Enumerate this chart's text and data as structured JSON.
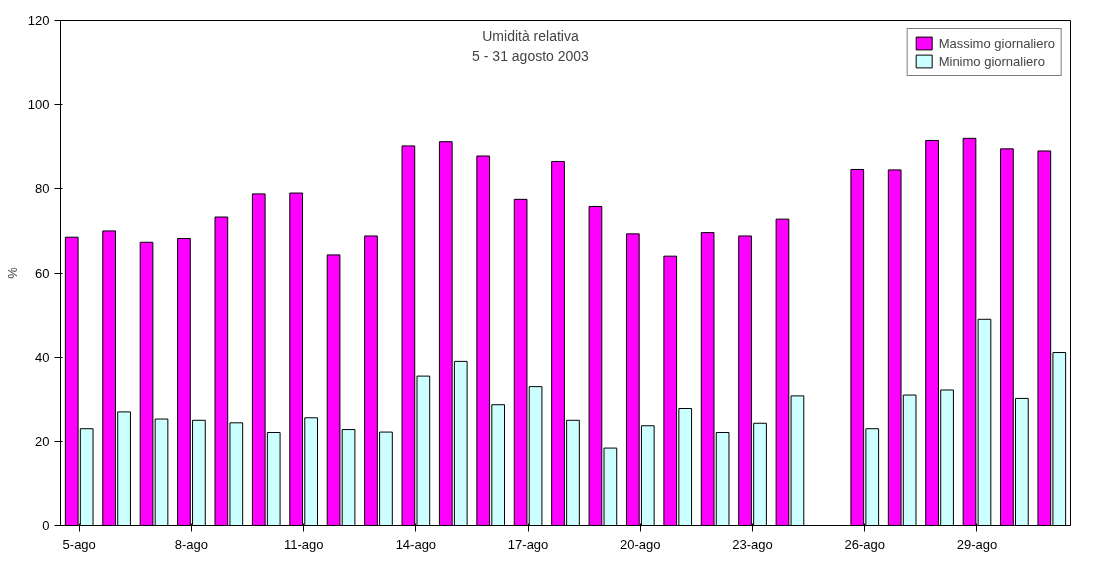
{
  "chart_data": {
    "type": "bar",
    "title": "Umidità relativa",
    "subtitle": "5 - 31 agosto 2003",
    "ylabel": "%",
    "categories": [
      "5-ago",
      null,
      null,
      "8-ago",
      null,
      null,
      "11-ago",
      null,
      null,
      "14-ago",
      null,
      null,
      "17-ago",
      null,
      null,
      "20-ago",
      null,
      null,
      "23-ago",
      null,
      null,
      "26-ago",
      null,
      null,
      "29-ago",
      null,
      null
    ],
    "series": [
      {
        "name": "Massimo giornaliero",
        "color": "#ff00ff",
        "values": [
          68.5,
          70,
          67.3,
          68.2,
          73.3,
          78.8,
          79,
          64.3,
          68.8,
          90.2,
          91.2,
          87.8,
          77.5,
          86.5,
          75.8,
          69.3,
          64,
          69.6,
          68.8,
          72.8,
          null,
          84.6,
          84.5,
          91.5,
          92,
          89.5,
          89
        ]
      },
      {
        "name": "Minimo giornaliero",
        "color": "#ccffff",
        "values": [
          23,
          27,
          25.3,
          25,
          24.4,
          22.1,
          25.6,
          22.8,
          22.2,
          35.5,
          39,
          28.7,
          33,
          25,
          18.4,
          23.7,
          27.8,
          22.1,
          24.3,
          30.8,
          null,
          23,
          31,
          32.2,
          49,
          30.2,
          41.1
        ]
      }
    ],
    "ylim": [
      0,
      120
    ],
    "yticks": [
      0,
      20,
      40,
      60,
      80,
      100,
      120
    ],
    "grid": false,
    "legend": "top right"
  }
}
